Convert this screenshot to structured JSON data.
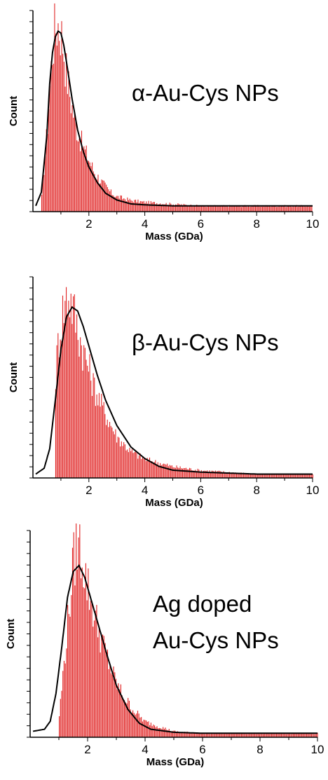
{
  "chart_data": [
    {
      "type": "bar",
      "annotation": [
        "α-Au-Cys NPs"
      ],
      "xlabel": "Mass (GDa)",
      "ylabel": "Count",
      "xlim": [
        0,
        10
      ],
      "ylim": [
        0,
        100
      ],
      "x_ticks": [
        2,
        4,
        6,
        8,
        10
      ],
      "histogram": {
        "x": [
          0.3,
          0.5,
          0.7,
          0.8,
          0.9,
          1.0,
          1.1,
          1.2,
          1.4,
          1.6,
          1.8,
          2.0,
          2.2,
          2.5,
          2.8,
          3.0,
          3.5,
          4.0,
          5.0,
          6.0,
          7.0,
          8.0,
          9.0,
          10.0
        ],
        "y": [
          4,
          40,
          86,
          97,
          100,
          96,
          88,
          74,
          56,
          43,
          34,
          28,
          21,
          15,
          10,
          8,
          6,
          5,
          4,
          3,
          3,
          3,
          3,
          3
        ]
      },
      "fit_curve": {
        "x": [
          0.1,
          0.3,
          0.5,
          0.6,
          0.7,
          0.8,
          0.9,
          1.0,
          1.1,
          1.2,
          1.4,
          1.6,
          1.8,
          2.0,
          2.3,
          2.6,
          3.0,
          3.5,
          4.0,
          5.0,
          6.0,
          7.0,
          8.0,
          9.0,
          10.0
        ],
        "y": [
          3,
          10,
          40,
          66,
          82,
          90,
          93,
          92,
          86,
          77,
          58,
          42,
          31,
          23,
          15,
          9.5,
          6,
          4,
          3.5,
          3,
          3,
          3,
          3,
          3,
          3
        ]
      }
    },
    {
      "type": "bar",
      "annotation": [
        "β-Au-Cys NPs"
      ],
      "xlabel": "Mass (GDa)",
      "ylabel": "Count",
      "xlim": [
        0,
        10
      ],
      "ylim": [
        0,
        100
      ],
      "x_ticks": [
        2,
        4,
        6,
        8,
        10
      ],
      "histogram": {
        "x": [
          0.8,
          0.9,
          1.0,
          1.1,
          1.2,
          1.3,
          1.4,
          1.5,
          1.6,
          1.8,
          2.0,
          2.2,
          2.5,
          2.8,
          3.0,
          3.5,
          4.0,
          5.0,
          6.0,
          7.0,
          8.0,
          9.0,
          10.0
        ],
        "y": [
          50,
          70,
          82,
          90,
          95,
          97,
          92,
          86,
          79,
          68,
          58,
          48,
          37,
          28,
          22,
          14,
          10,
          6,
          4,
          3,
          2,
          2,
          2
        ]
      },
      "fit_curve": {
        "x": [
          0.1,
          0.4,
          0.6,
          0.8,
          1.0,
          1.2,
          1.4,
          1.6,
          1.8,
          2.0,
          2.3,
          2.6,
          3.0,
          3.5,
          4.0,
          4.5,
          5.0,
          6.0,
          7.0,
          8.0,
          9.0,
          10.0
        ],
        "y": [
          2,
          5,
          15,
          40,
          66,
          83,
          88,
          86,
          78,
          68,
          53,
          40,
          27,
          16,
          10,
          6,
          4,
          3,
          2.5,
          2,
          2,
          2
        ]
      }
    },
    {
      "type": "bar",
      "annotation": [
        "Ag doped",
        "Au-Cys NPs"
      ],
      "xlabel": "Mass (GDa)",
      "ylabel": "Count",
      "xlim": [
        0,
        10
      ],
      "ylim": [
        0,
        100
      ],
      "x_ticks": [
        2,
        4,
        6,
        8,
        10
      ],
      "histogram": {
        "x": [
          1.0,
          1.2,
          1.4,
          1.5,
          1.6,
          1.7,
          1.8,
          1.9,
          2.0,
          2.2,
          2.4,
          2.6,
          2.8,
          3.0,
          3.3,
          3.6,
          4.0,
          5.0,
          6.0,
          7.0,
          8.0,
          9.0,
          10.0
        ],
        "y": [
          8,
          40,
          72,
          88,
          96,
          100,
          94,
          86,
          78,
          66,
          55,
          45,
          36,
          28,
          20,
          14,
          8,
          3,
          2,
          2,
          2,
          2,
          2
        ]
      },
      "fit_curve": {
        "x": [
          0.1,
          0.5,
          0.7,
          0.9,
          1.1,
          1.3,
          1.5,
          1.7,
          1.9,
          2.1,
          2.4,
          2.7,
          3.0,
          3.4,
          3.8,
          4.2,
          5.0,
          6.0,
          7.0,
          8.0,
          9.0,
          10.0
        ],
        "y": [
          3,
          4,
          8,
          22,
          45,
          70,
          83,
          86,
          80,
          70,
          55,
          40,
          26,
          14,
          7,
          4,
          2.5,
          2,
          2,
          2,
          2,
          2
        ]
      }
    }
  ]
}
